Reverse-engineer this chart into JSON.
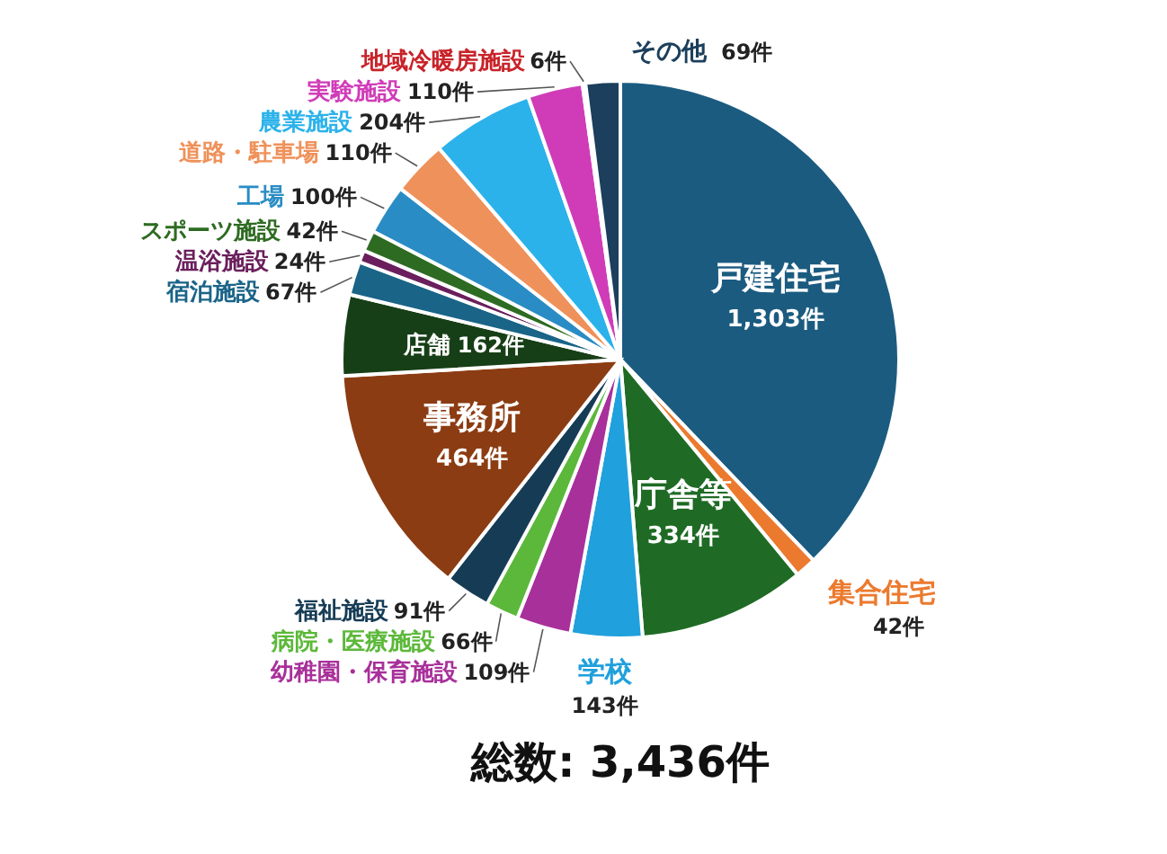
{
  "chart_data": {
    "type": "pie",
    "categories": [
      "戸建住宅",
      "集合住宅",
      "庁舎等",
      "学校",
      "幼稚園・保育施設",
      "病院・医療施設",
      "福祉施設",
      "事務所",
      "店舗",
      "宿泊施設",
      "温浴施設",
      "スポーツ施設",
      "工場",
      "道路・駐車場",
      "農業施設",
      "実験施設",
      "地域冷暖房施設",
      "その他"
    ],
    "values": [
      1303,
      42,
      334,
      143,
      109,
      66,
      91,
      464,
      162,
      67,
      24,
      42,
      100,
      110,
      204,
      110,
      6,
      69
    ],
    "value_labels": [
      "1,303件",
      "42件",
      "334件",
      "143件",
      "109件",
      "66件",
      "91件",
      "464件",
      "162件",
      "67件",
      "24件",
      "42件",
      "100件",
      "110件",
      "204件",
      "110件",
      "6件",
      "69件"
    ],
    "colors": [
      "#1b5b80",
      "#ec7a2e",
      "#1f6b25",
      "#20a0dc",
      "#a8309a",
      "#5cb83a",
      "#163c55",
      "#8c3c12",
      "#173f17",
      "#1a6488",
      "#6a1f5c",
      "#2e6b22",
      "#2a8cc4",
      "#ef915a",
      "#2bb2ea",
      "#d03cb8",
      "#c8232a",
      "#1b3f5c"
    ],
    "annotations": [
      "総数: 3,436件"
    ]
  }
}
